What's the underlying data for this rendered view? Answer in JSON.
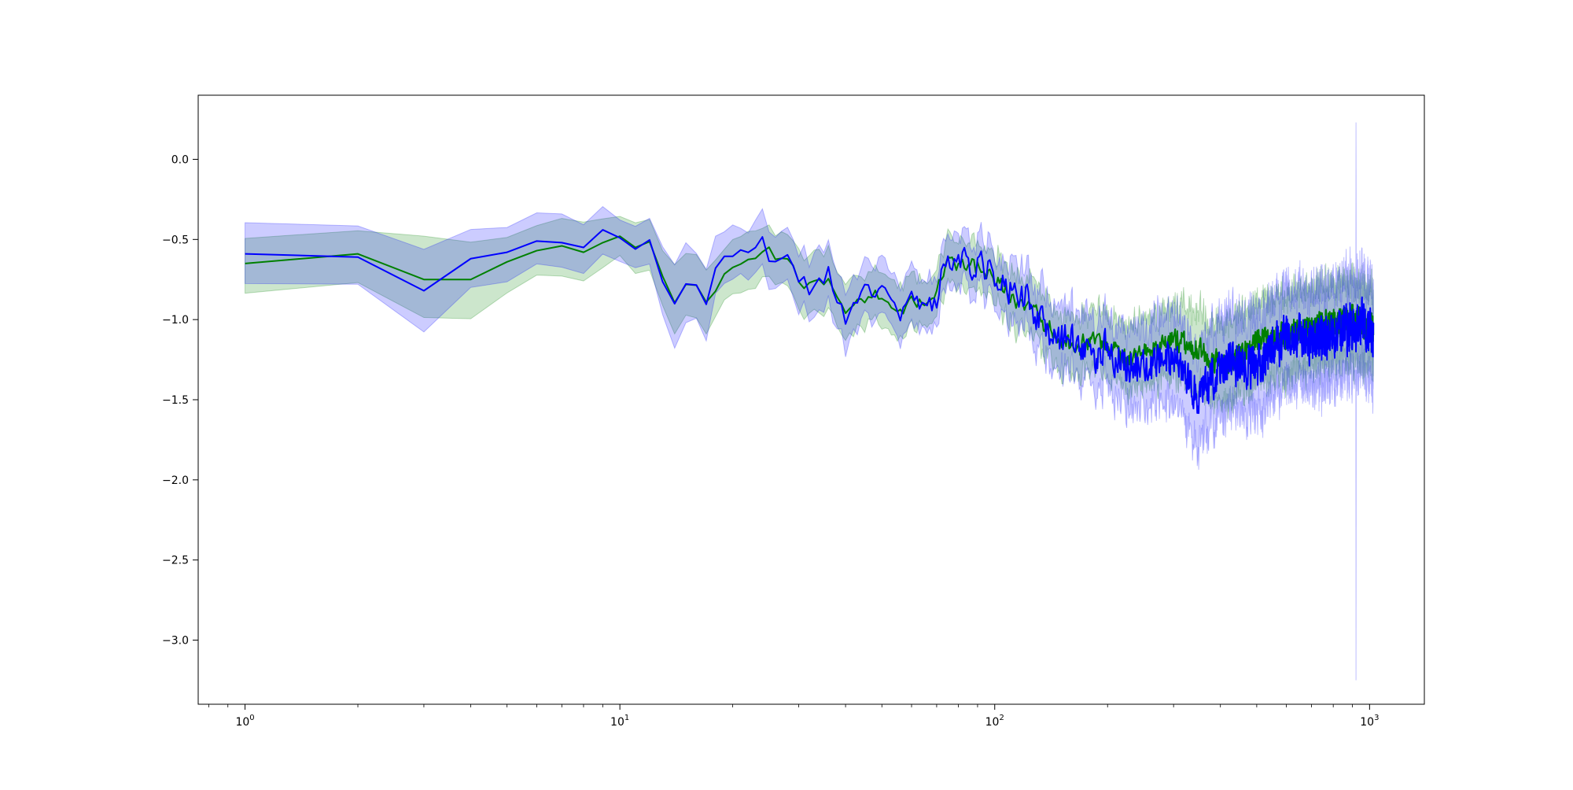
{
  "chart_data": {
    "type": "line",
    "title": "",
    "xlabel": "",
    "ylabel": "",
    "xscale": "log",
    "xlim": [
      0.75,
      1400
    ],
    "ylim": [
      -3.4,
      0.4
    ],
    "grid": false,
    "legend": "none",
    "x_ticks": [
      {
        "value": 1,
        "base": "10",
        "exp": "0"
      },
      {
        "value": 10,
        "base": "10",
        "exp": "1"
      },
      {
        "value": 100,
        "base": "10",
        "exp": "2"
      },
      {
        "value": 1000,
        "base": "10",
        "exp": "3"
      }
    ],
    "y_ticks": [
      {
        "value": 0.0,
        "label": "0.0"
      },
      {
        "value": -0.5,
        "label": "−0.5"
      },
      {
        "value": -1.0,
        "label": "−1.0"
      },
      {
        "value": -1.5,
        "label": "−1.5"
      },
      {
        "value": -2.0,
        "label": "−2.0"
      },
      {
        "value": -2.5,
        "label": "−2.5"
      },
      {
        "value": -3.0,
        "label": "−3.0"
      }
    ],
    "series": [
      {
        "color": "#008000",
        "band_color": "#008000",
        "band_opacity": 0.2,
        "anchors_x": [
          1,
          2,
          3,
          4,
          5,
          6,
          7,
          8,
          9,
          10,
          11,
          12,
          14,
          15,
          16,
          17,
          18,
          20,
          22,
          24,
          26,
          28,
          30,
          33,
          36,
          40,
          45,
          50,
          55,
          60,
          65,
          70,
          75,
          80,
          90,
          100,
          110,
          120,
          140,
          160,
          180,
          200,
          230,
          260,
          300,
          350,
          400,
          450,
          500,
          600,
          700,
          800,
          900,
          1000
        ],
        "anchors_y": [
          -0.65,
          -0.59,
          -0.75,
          -0.75,
          -0.64,
          -0.57,
          -0.54,
          -0.58,
          -0.52,
          -0.48,
          -0.55,
          -0.53,
          -0.88,
          -0.79,
          -0.78,
          -0.87,
          -0.8,
          -0.68,
          -0.62,
          -0.56,
          -0.6,
          -0.59,
          -0.73,
          -0.8,
          -0.78,
          -0.97,
          -0.85,
          -0.85,
          -0.98,
          -0.92,
          -0.85,
          -0.8,
          -0.62,
          -0.68,
          -0.68,
          -0.75,
          -0.85,
          -0.92,
          -1.05,
          -1.18,
          -1.15,
          -1.2,
          -1.25,
          -1.18,
          -1.12,
          -1.2,
          -1.28,
          -1.22,
          -1.15,
          -1.1,
          -1.05,
          -1.02,
          -1.0,
          -1.05
        ],
        "band_half_width": [
          0.17,
          0.17,
          0.25,
          0.22,
          0.17,
          0.17,
          0.18,
          0.18,
          0.15,
          0.13,
          0.14,
          0.15,
          0.22,
          0.22,
          0.22,
          0.22,
          0.18,
          0.17,
          0.16,
          0.16,
          0.16,
          0.17,
          0.18,
          0.18,
          0.18,
          0.18,
          0.16,
          0.17,
          0.17,
          0.17,
          0.15,
          0.14,
          0.15,
          0.15,
          0.15,
          0.15,
          0.16,
          0.16,
          0.18,
          0.18,
          0.18,
          0.19,
          0.2,
          0.21,
          0.22,
          0.24,
          0.24,
          0.25,
          0.25,
          0.25,
          0.24,
          0.24,
          0.24,
          0.24
        ],
        "jitter_start": 12,
        "jitter_amp": [
          0.03,
          0.08
        ],
        "seed": 11
      },
      {
        "color": "#0000ff",
        "band_color": "#0000ff",
        "band_opacity": 0.2,
        "anchors_x": [
          1,
          2,
          3,
          4,
          5,
          6,
          7,
          8,
          9,
          10,
          11,
          12,
          14,
          15,
          16,
          17,
          18,
          20,
          22,
          24,
          26,
          28,
          30,
          33,
          36,
          40,
          45,
          50,
          55,
          60,
          65,
          70,
          75,
          80,
          90,
          100,
          110,
          120,
          140,
          160,
          180,
          200,
          230,
          260,
          300,
          350,
          400,
          450,
          500,
          600,
          700,
          800,
          900,
          1000
        ],
        "anchors_y": [
          -0.59,
          -0.61,
          -0.82,
          -0.62,
          -0.58,
          -0.51,
          -0.52,
          -0.55,
          -0.44,
          -0.49,
          -0.56,
          -0.53,
          -0.93,
          -0.79,
          -0.79,
          -0.86,
          -0.66,
          -0.63,
          -0.58,
          -0.53,
          -0.67,
          -0.58,
          -0.76,
          -0.83,
          -0.71,
          -1.02,
          -0.72,
          -0.86,
          -0.98,
          -0.86,
          -0.92,
          -0.85,
          -0.6,
          -0.64,
          -0.66,
          -0.71,
          -0.8,
          -0.85,
          -1.12,
          -1.12,
          -1.22,
          -1.18,
          -1.3,
          -1.28,
          -1.25,
          -1.45,
          -1.3,
          -1.28,
          -1.3,
          -1.1,
          -1.15,
          -1.1,
          -1.05,
          -1.05
        ],
        "band_half_width": [
          0.17,
          0.18,
          0.27,
          0.2,
          0.17,
          0.17,
          0.18,
          0.17,
          0.13,
          0.12,
          0.12,
          0.14,
          0.25,
          0.23,
          0.2,
          0.2,
          0.18,
          0.17,
          0.15,
          0.15,
          0.16,
          0.17,
          0.18,
          0.18,
          0.18,
          0.18,
          0.17,
          0.18,
          0.18,
          0.18,
          0.16,
          0.15,
          0.16,
          0.16,
          0.16,
          0.16,
          0.17,
          0.17,
          0.19,
          0.2,
          0.21,
          0.22,
          0.24,
          0.25,
          0.27,
          0.3,
          0.3,
          0.3,
          0.3,
          0.3,
          0.3,
          0.3,
          0.3,
          0.3
        ],
        "jitter_start": 12,
        "jitter_amp": [
          0.04,
          0.14
        ],
        "seed": 29,
        "spike": {
          "x": 920,
          "center": -1.2,
          "low": -3.25,
          "high": 0.23
        }
      }
    ]
  }
}
